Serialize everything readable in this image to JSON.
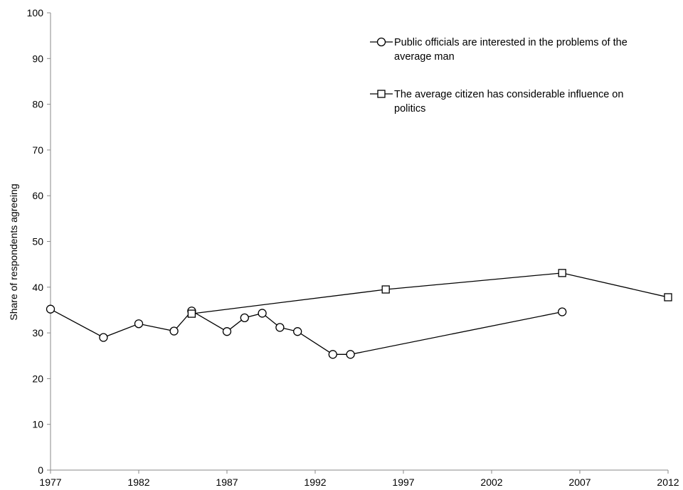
{
  "chart_data": {
    "type": "line",
    "title": "",
    "xlabel": "",
    "ylabel": "Share of respondents agreeing",
    "xlim": [
      1977,
      2012
    ],
    "ylim": [
      0,
      100
    ],
    "x_ticks": [
      1977,
      1982,
      1987,
      1992,
      1997,
      2002,
      2007,
      2012
    ],
    "y_ticks": [
      0,
      10,
      20,
      30,
      40,
      50,
      60,
      70,
      80,
      90,
      100
    ],
    "grid": false,
    "legend_position": "top-right",
    "series": [
      {
        "name": "Public officials are interested in the problems of the average man",
        "marker": "circle",
        "x": [
          1977,
          1980,
          1982,
          1984,
          1985,
          1987,
          1988,
          1989,
          1990,
          1991,
          1993,
          1994,
          2006
        ],
        "y": [
          35.2,
          29.0,
          32.0,
          30.4,
          34.8,
          30.3,
          33.3,
          34.3,
          31.2,
          30.3,
          25.3,
          25.3,
          34.6
        ],
        "legend_lines": [
          "Public officials are interested in the problems of the",
          "average man"
        ]
      },
      {
        "name": "The average citizen has considerable influence on politics",
        "marker": "square",
        "x": [
          1985,
          1996,
          2006,
          2012
        ],
        "y": [
          34.2,
          39.5,
          43.1,
          37.8
        ],
        "legend_lines": [
          "The average citizen has considerable influence on",
          "politics"
        ]
      }
    ]
  }
}
